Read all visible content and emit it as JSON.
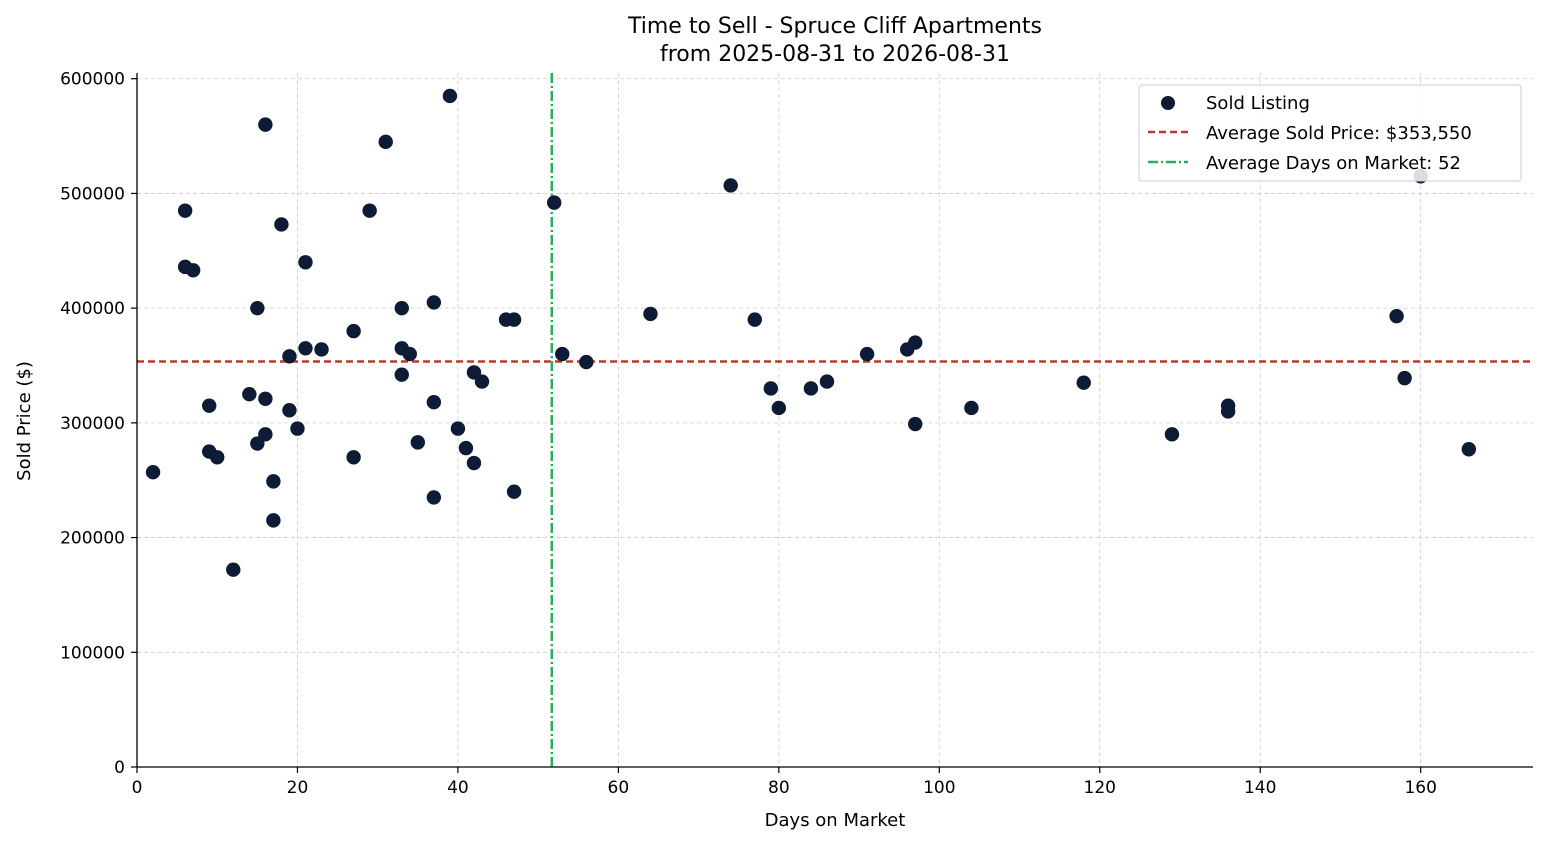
{
  "chart_data": {
    "type": "scatter",
    "title": "Time to Sell - Spruce Cliff Apartments",
    "subtitle": "from 2025-08-31 to 2026-08-31",
    "xlabel": "Days on Market",
    "ylabel": "Sold Price ($)",
    "xlim": [
      0,
      174
    ],
    "ylim": [
      0,
      605000
    ],
    "xticks": [
      0,
      20,
      40,
      60,
      80,
      100,
      120,
      140,
      160
    ],
    "yticks": [
      0,
      100000,
      200000,
      300000,
      400000,
      500000,
      600000
    ],
    "grid": true,
    "legend_position": "top-right",
    "colors": {
      "points": "#0d1b35",
      "avg_price": "#c0392b",
      "avg_days": "#27ae60"
    },
    "series": [
      {
        "name": "Sold Listing",
        "points": [
          [
            2,
            257000
          ],
          [
            6,
            485000
          ],
          [
            6,
            436000
          ],
          [
            7,
            433000
          ],
          [
            9,
            315000
          ],
          [
            9,
            275000
          ],
          [
            10,
            270000
          ],
          [
            12,
            172000
          ],
          [
            14,
            325000
          ],
          [
            15,
            400000
          ],
          [
            15,
            282000
          ],
          [
            16,
            560000
          ],
          [
            16,
            321000
          ],
          [
            16,
            290000
          ],
          [
            17,
            249000
          ],
          [
            17,
            215000
          ],
          [
            18,
            473000
          ],
          [
            19,
            358000
          ],
          [
            19,
            311000
          ],
          [
            20,
            295000
          ],
          [
            21,
            440000
          ],
          [
            21,
            365000
          ],
          [
            23,
            364000
          ],
          [
            27,
            380000
          ],
          [
            27,
            270000
          ],
          [
            29,
            485000
          ],
          [
            31,
            545000
          ],
          [
            33,
            400000
          ],
          [
            33,
            365000
          ],
          [
            33,
            342000
          ],
          [
            34,
            360000
          ],
          [
            35,
            283000
          ],
          [
            37,
            405000
          ],
          [
            37,
            318000
          ],
          [
            37,
            235000
          ],
          [
            39,
            585000
          ],
          [
            40,
            295000
          ],
          [
            41,
            278000
          ],
          [
            42,
            344000
          ],
          [
            42,
            265000
          ],
          [
            43,
            336000
          ],
          [
            46,
            390000
          ],
          [
            47,
            390000
          ],
          [
            47,
            240000
          ],
          [
            52,
            492000
          ],
          [
            53,
            360000
          ],
          [
            56,
            353000
          ],
          [
            64,
            395000
          ],
          [
            74,
            507000
          ],
          [
            77,
            390000
          ],
          [
            79,
            330000
          ],
          [
            80,
            313000
          ],
          [
            84,
            330000
          ],
          [
            86,
            336000
          ],
          [
            91,
            360000
          ],
          [
            96,
            364000
          ],
          [
            97,
            370000
          ],
          [
            97,
            299000
          ],
          [
            104,
            313000
          ],
          [
            118,
            335000
          ],
          [
            129,
            290000
          ],
          [
            136,
            315000
          ],
          [
            136,
            310000
          ],
          [
            157,
            393000
          ],
          [
            158,
            339000
          ],
          [
            160,
            515000
          ],
          [
            166,
            277000
          ]
        ]
      }
    ],
    "reference_lines": {
      "avg_price": 353550,
      "avg_days": 51.7
    },
    "legend": {
      "sold_label": "Sold Listing",
      "avg_price_label": "Average Sold Price: $353,550",
      "avg_days_label": "Average Days on Market: 52"
    }
  }
}
